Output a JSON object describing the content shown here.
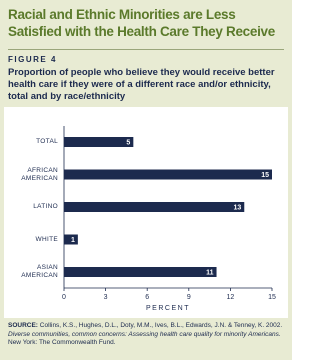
{
  "header": {
    "title": "Racial and Ethnic Minorities are Less Satisfied with the Health Care They Receive",
    "figure": "FIGURE 4",
    "subtitle": "Proportion of people who believe they would receive better health care if they were of a different race and/or ethnicity, total and by race/ethnicity"
  },
  "chart_data": {
    "type": "hbar",
    "categories": [
      "TOTAL",
      "AFRICAN AMERICAN",
      "LATINO",
      "WHITE",
      "ASIAN AMERICAN"
    ],
    "values": [
      5,
      15,
      13,
      1,
      11
    ],
    "color": "#1c2a4e",
    "xlim": [
      0,
      15
    ],
    "xticks": [
      0,
      3,
      6,
      9,
      12,
      15
    ],
    "xlabel": "PERCENT"
  },
  "source": {
    "label": "SOURCE:",
    "text": "Collins, K.S., Hughes, D.L., Doty, M.M., Ives, B.L., Edwards, J.N. & Tenney, K. 2002.",
    "title": "Diverse communities, common concerns: Assessing health care quality for minority Americans.",
    "publisher": "New York: The Commonwealth Fund."
  }
}
